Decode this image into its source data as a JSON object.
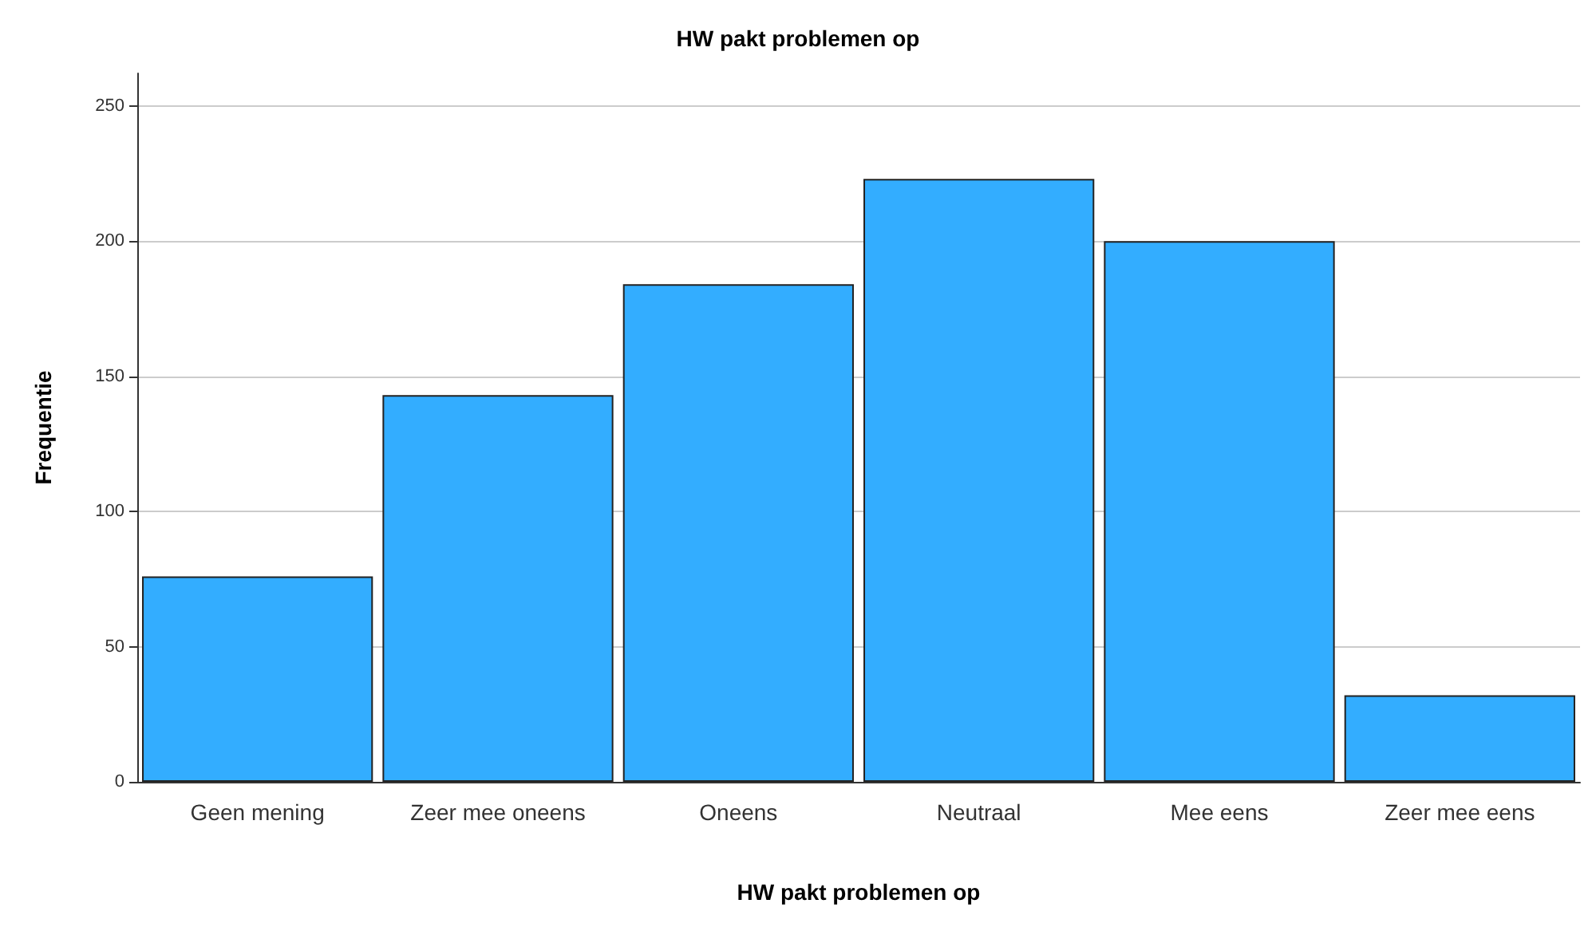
{
  "chart_data": {
    "type": "bar",
    "title": "HW pakt problemen op",
    "xlabel": "HW pakt problemen op",
    "ylabel": "Frequentie",
    "categories": [
      "Geen mening",
      "Zeer mee oneens",
      "Oneens",
      "Neutraal",
      "Mee eens",
      "Zeer mee eens"
    ],
    "values": [
      76,
      143,
      184,
      223,
      200,
      32
    ],
    "color": "#33adff",
    "ylim": [
      0,
      262
    ],
    "yticks": [
      0,
      50,
      100,
      150,
      200,
      250
    ],
    "grid": "y"
  }
}
